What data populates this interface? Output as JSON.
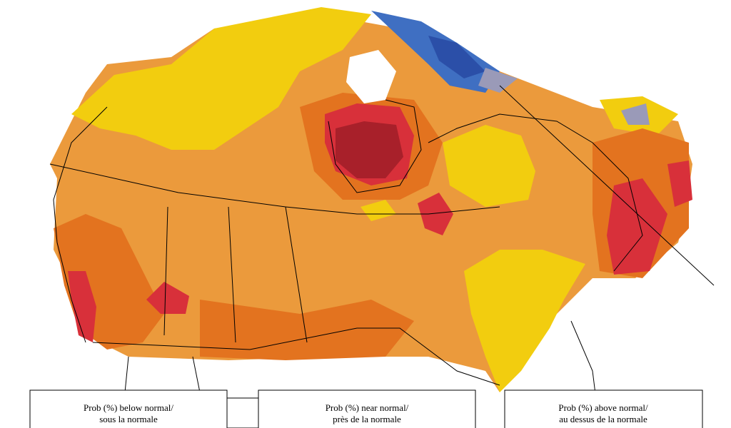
{
  "legends": [
    {
      "line1": "Prob (%) below normal/",
      "line2": "sous la normale"
    },
    {
      "line1": "Prob (%) near normal/",
      "line2": "près de la normale"
    },
    {
      "line1": "Prob (%) above normal/",
      "line2": "au dessus de la normale"
    }
  ]
}
